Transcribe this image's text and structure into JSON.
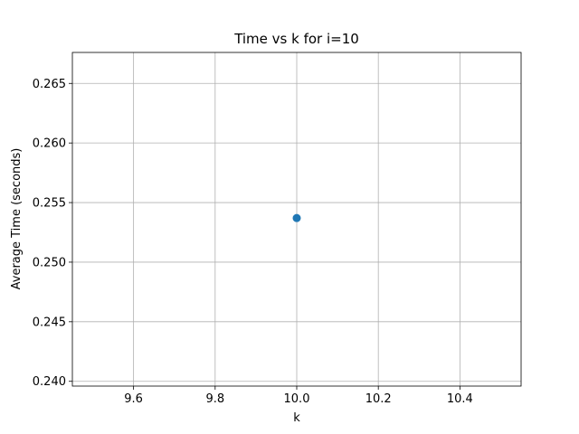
{
  "chart_data": {
    "type": "scatter",
    "title": "Time vs k for i=10",
    "xlabel": "k",
    "ylabel": "Average Time (seconds)",
    "xlim": [
      9.45,
      10.55
    ],
    "ylim": [
      0.2396,
      0.2676
    ],
    "x_ticks": [
      9.6,
      9.8,
      10.0,
      10.2,
      10.4
    ],
    "x_tick_labels": [
      "9.6",
      "9.8",
      "10.0",
      "10.2",
      "10.4"
    ],
    "y_ticks": [
      0.24,
      0.245,
      0.25,
      0.255,
      0.26,
      0.265
    ],
    "y_tick_labels": [
      "0.240",
      "0.245",
      "0.250",
      "0.255",
      "0.260",
      "0.265"
    ],
    "grid": true,
    "series": [
      {
        "x": [
          10.0
        ],
        "y": [
          0.2537
        ],
        "color": "#1f77b4",
        "marker": "circle"
      }
    ]
  }
}
